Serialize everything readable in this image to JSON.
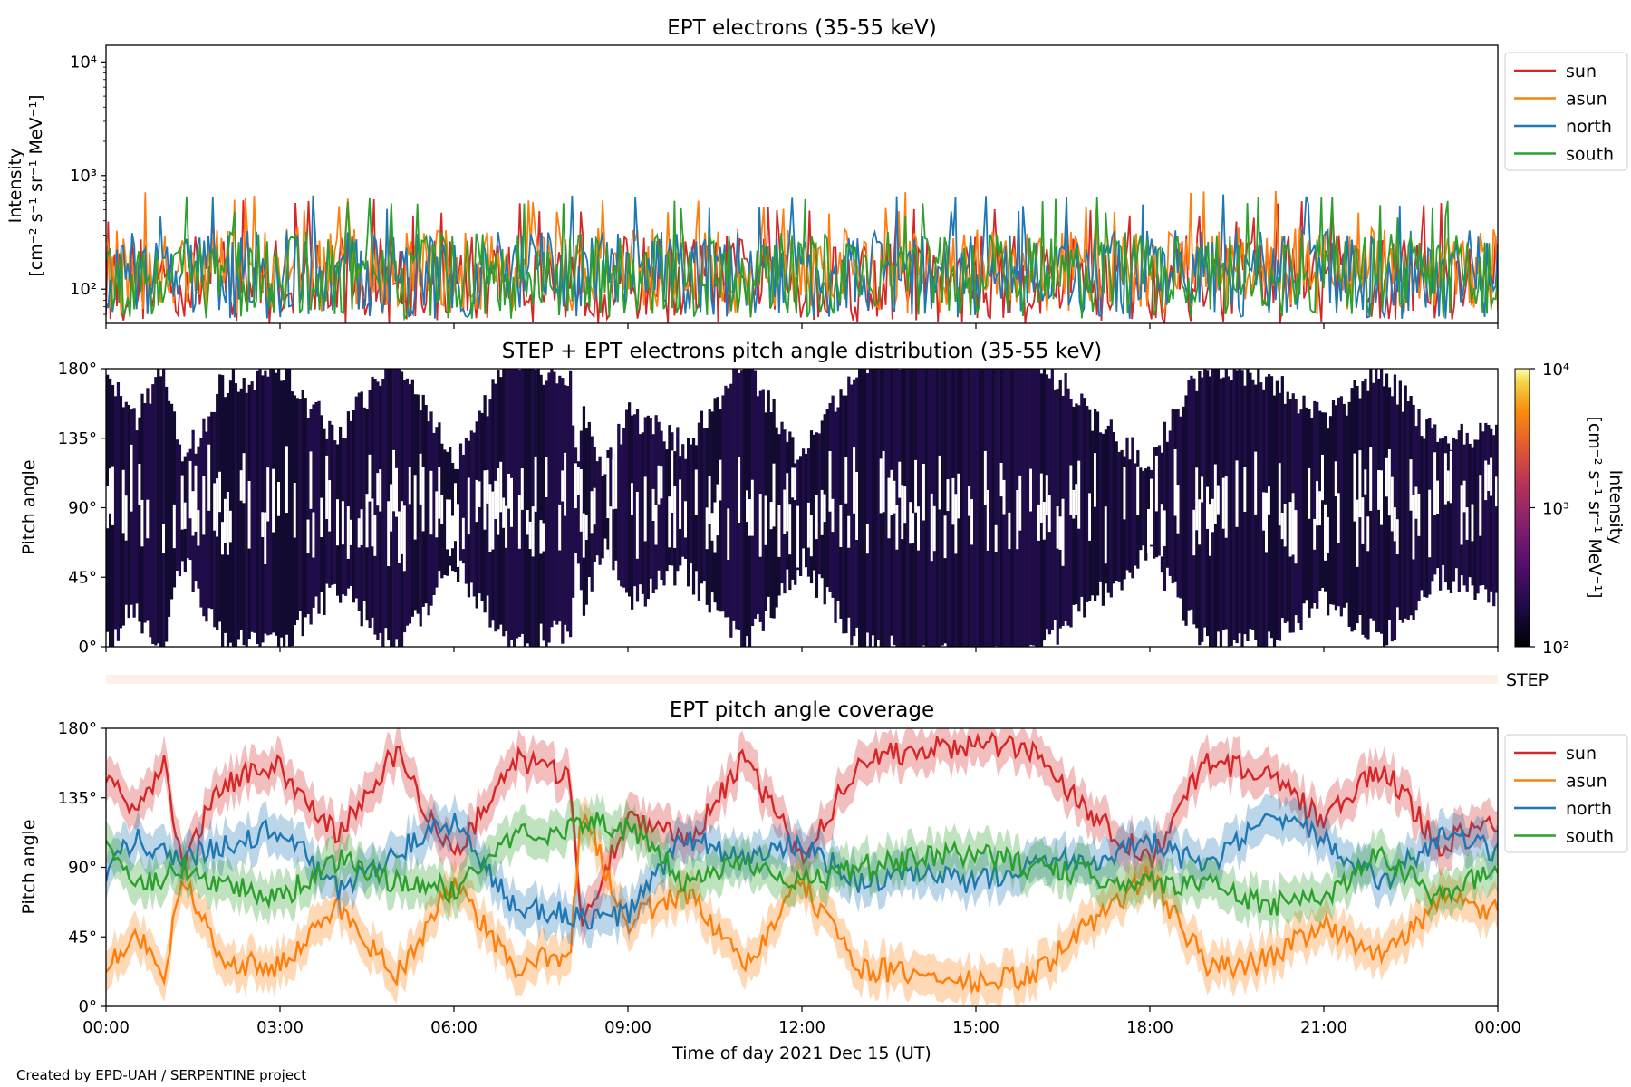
{
  "chart_data": [
    {
      "type": "line",
      "title": "EPT electrons (35-55 keV)",
      "ylabel_line1": "Intensity",
      "ylabel_line2": "[cm⁻² s⁻¹ sr⁻¹ MeV⁻¹]",
      "yscale": "log",
      "ylim": [
        50,
        14000
      ],
      "yticks": [
        "10⁴",
        "10³",
        "10²"
      ],
      "xlim": [
        "2021-12-15 00:00",
        "2021-12-16 00:00"
      ],
      "legend_position": "outside-right-top",
      "series": [
        {
          "name": "sun",
          "color": "#d62728",
          "typical_range": [
            50,
            300
          ]
        },
        {
          "name": "asun",
          "color": "#ff7f0e",
          "typical_range": [
            60,
            350
          ]
        },
        {
          "name": "north",
          "color": "#1f77b4",
          "typical_range": [
            55,
            330
          ]
        },
        {
          "name": "south",
          "color": "#2ca02c",
          "typical_range": [
            55,
            320
          ]
        }
      ]
    },
    {
      "type": "heatmap",
      "title": "STEP + EPT electrons pitch angle distribution (35-55 keV)",
      "ylabel": "Pitch angle",
      "ylim": [
        0,
        180
      ],
      "yticks": [
        "180°",
        "135°",
        "90°",
        "45°",
        "0°"
      ],
      "colorbar": {
        "label_line1": "Intensity",
        "label_line2": "[cm⁻² s⁻¹ sr⁻¹ MeV⁻¹]",
        "scale": "log",
        "range": [
          100,
          10000
        ],
        "ticks": [
          "10⁴",
          "10³",
          "10²"
        ],
        "colormap": "inferno"
      },
      "typical_intensity": 150
    },
    {
      "type": "heatmap",
      "label": "STEP",
      "note": "empty strip"
    },
    {
      "type": "line",
      "title": "EPT pitch angle coverage",
      "ylabel": "Pitch angle",
      "ylim": [
        0,
        180
      ],
      "yticks": [
        "180°",
        "135°",
        "90°",
        "45°",
        "0°"
      ],
      "xlabel": "Time of day 2021 Dec 15 (UT)",
      "xticks": [
        "00:00",
        "03:00",
        "06:00",
        "09:00",
        "12:00",
        "15:00",
        "18:00",
        "21:00",
        "00:00"
      ],
      "legend_position": "outside-right-top",
      "series": [
        {
          "name": "sun",
          "color": "#d62728",
          "x_hours": [
            0,
            0.5,
            1,
            1.3,
            2,
            3,
            4,
            5,
            6,
            7,
            8,
            8.2,
            9,
            10,
            11,
            12,
            13,
            14,
            15,
            16,
            17,
            18,
            19,
            20,
            21,
            22,
            23,
            24
          ],
          "values": [
            150,
            120,
            160,
            90,
            145,
            155,
            110,
            165,
            95,
            160,
            150,
            50,
            125,
            105,
            160,
            95,
            160,
            165,
            170,
            165,
            125,
            95,
            160,
            150,
            120,
            155,
            105,
            120
          ]
        },
        {
          "name": "asun",
          "color": "#ff7f0e",
          "x_hours": [
            0,
            0.5,
            1,
            1.3,
            2,
            3,
            4,
            5,
            6,
            7,
            8,
            8.2,
            9,
            10,
            11,
            12,
            13,
            14,
            15,
            16,
            17,
            18,
            19,
            20,
            21,
            22,
            23,
            24
          ],
          "values": [
            25,
            50,
            20,
            85,
            30,
            25,
            65,
            20,
            80,
            25,
            35,
            125,
            55,
            75,
            25,
            80,
            25,
            20,
            15,
            20,
            55,
            85,
            25,
            30,
            55,
            30,
            70,
            60
          ]
        },
        {
          "name": "north",
          "color": "#1f77b4",
          "x_hours": [
            0,
            0.5,
            1,
            1.3,
            2,
            3,
            4,
            5,
            6,
            7,
            8,
            8.2,
            9,
            10,
            11,
            12,
            13,
            14,
            15,
            16,
            17,
            18,
            19,
            20,
            21,
            22,
            23,
            24
          ],
          "values": [
            85,
            110,
            100,
            95,
            105,
            115,
            75,
            100,
            120,
            65,
            60,
            55,
            60,
            110,
            95,
            105,
            80,
            85,
            80,
            95,
            95,
            105,
            90,
            120,
            110,
            80,
            110,
            100
          ]
        },
        {
          "name": "south",
          "color": "#2ca02c",
          "x_hours": [
            0,
            0.5,
            1,
            1.3,
            2,
            3,
            4,
            5,
            6,
            7,
            8,
            8.2,
            9,
            10,
            11,
            12,
            13,
            14,
            15,
            16,
            17,
            18,
            19,
            20,
            21,
            22,
            23,
            24
          ],
          "values": [
            100,
            75,
            85,
            90,
            80,
            70,
            95,
            80,
            75,
            110,
            115,
            120,
            115,
            80,
            95,
            80,
            90,
            95,
            100,
            90,
            85,
            80,
            80,
            65,
            70,
            100,
            70,
            90
          ]
        }
      ]
    }
  ],
  "credit": "Created by EPD-UAH / SERPENTINE project"
}
